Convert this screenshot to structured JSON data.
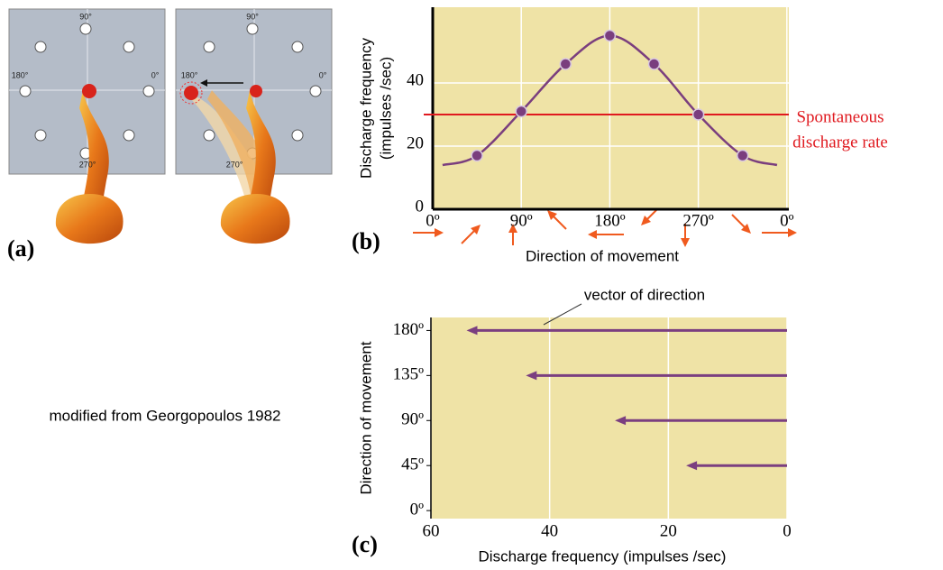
{
  "panel_a": {
    "label": "(a)",
    "left": {
      "top": "90°",
      "left": "180°",
      "right": "0°",
      "bottom": "270°"
    },
    "right": {
      "top": "90°",
      "left": "180°",
      "right": "0°",
      "bottom": "270°"
    }
  },
  "caption": "modified from Georgopoulos 1982",
  "chart_data": [
    {
      "type": "line",
      "panel_label": "(b)",
      "y_label_lines": [
        "Discharge frequency",
        "(impulses /sec)"
      ],
      "x_label": "Direction of movement",
      "xlim": [
        0,
        362
      ],
      "ylim": [
        0,
        64
      ],
      "xticks": [
        {
          "value": 0,
          "label": "0º"
        },
        {
          "value": 90,
          "label": "90º"
        },
        {
          "value": 180,
          "label": "180º"
        },
        {
          "value": 270,
          "label": "270º"
        },
        {
          "value": 360,
          "label": "0º"
        }
      ],
      "yticks": [
        0,
        20,
        40
      ],
      "grid": true,
      "background": "#efe3a6",
      "series": [
        {
          "style": "line",
          "color": "#7a3e7e",
          "x": [
            10,
            45,
            90,
            135,
            180,
            225,
            270,
            315,
            350
          ],
          "values": [
            14,
            17,
            31,
            46,
            55,
            46,
            30,
            17,
            14
          ]
        },
        {
          "style": "markers",
          "color": "#7a3e7e",
          "x": [
            45,
            90,
            135,
            180,
            225,
            270,
            315
          ],
          "values": [
            17,
            31,
            46,
            55,
            46,
            30,
            17
          ]
        }
      ],
      "reference_line": {
        "value": 30,
        "color": "#e0191f",
        "label_lines": [
          "Spontaneous",
          "discharge rate"
        ]
      }
    },
    {
      "type": "arrow",
      "panel_label": "(c)",
      "y_label": "Direction of movement",
      "x_label": "Discharge frequency (impulses /sec)",
      "annotation": "vector of direction",
      "xlim": [
        60,
        0
      ],
      "ylim": [
        -8,
        193
      ],
      "xticks": [
        60,
        40,
        20,
        0
      ],
      "yticks": [
        {
          "value": 0,
          "label": "0º"
        },
        {
          "value": 45,
          "label": "45º"
        },
        {
          "value": 90,
          "label": "90º"
        },
        {
          "value": 135,
          "label": "135º"
        },
        {
          "value": 180,
          "label": "180º"
        }
      ],
      "grid": true,
      "background": "#efe3a6",
      "color": "#7b3f80",
      "y": [
        45,
        90,
        135,
        180
      ],
      "values": [
        17,
        29,
        44,
        54
      ]
    }
  ]
}
